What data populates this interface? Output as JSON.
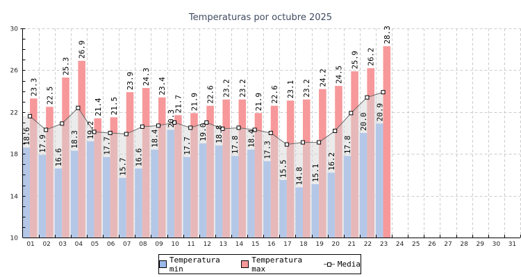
{
  "chart_data": {
    "type": "bar",
    "title": "Temperaturas por octubre 2025",
    "xlabel": "",
    "ylabel": "",
    "ylim": [
      10,
      30
    ],
    "yticks": [
      "10",
      "14",
      "18",
      "22",
      "26",
      "30"
    ],
    "grid": true,
    "legend_position": "bottom-center",
    "categories": [
      "01",
      "02",
      "03",
      "04",
      "05",
      "06",
      "07",
      "08",
      "09",
      "10",
      "11",
      "12",
      "13",
      "14",
      "15",
      "16",
      "17",
      "18",
      "19",
      "20",
      "21",
      "22",
      "23",
      "24",
      "25",
      "26",
      "27",
      "28",
      "29",
      "30",
      "31"
    ],
    "series": [
      {
        "name": "Temperatura min",
        "kind": "bar",
        "color": "#9cb8ea",
        "values": [
          18.6,
          17.9,
          16.6,
          18.3,
          19.2,
          17.7,
          15.7,
          16.6,
          18.4,
          20.3,
          17.7,
          19.0,
          18.8,
          17.8,
          18.4,
          17.3,
          15.5,
          14.8,
          15.1,
          16.2,
          17.8,
          20.0,
          20.9,
          null,
          null,
          null,
          null,
          null,
          null,
          null,
          null
        ]
      },
      {
        "name": "Temperatura max",
        "kind": "bar",
        "color": "#f7989a",
        "values": [
          23.3,
          22.5,
          25.3,
          26.9,
          21.4,
          21.5,
          23.9,
          24.3,
          23.4,
          21.7,
          21.9,
          22.6,
          23.2,
          23.2,
          21.9,
          22.6,
          23.1,
          23.2,
          24.2,
          24.5,
          25.9,
          26.2,
          28.3,
          null,
          null,
          null,
          null,
          null,
          null,
          null,
          null
        ]
      },
      {
        "name": "Media",
        "kind": "line",
        "color": "#666666",
        "values": [
          21.6,
          20.3,
          20.9,
          22.4,
          20.1,
          20.0,
          19.9,
          20.6,
          20.7,
          21.0,
          20.5,
          21.0,
          20.4,
          20.5,
          20.3,
          20.0,
          18.9,
          19.1,
          19.1,
          20.2,
          21.9,
          23.4,
          23.9,
          null,
          null,
          null,
          null,
          null,
          null,
          null,
          null
        ]
      }
    ]
  }
}
